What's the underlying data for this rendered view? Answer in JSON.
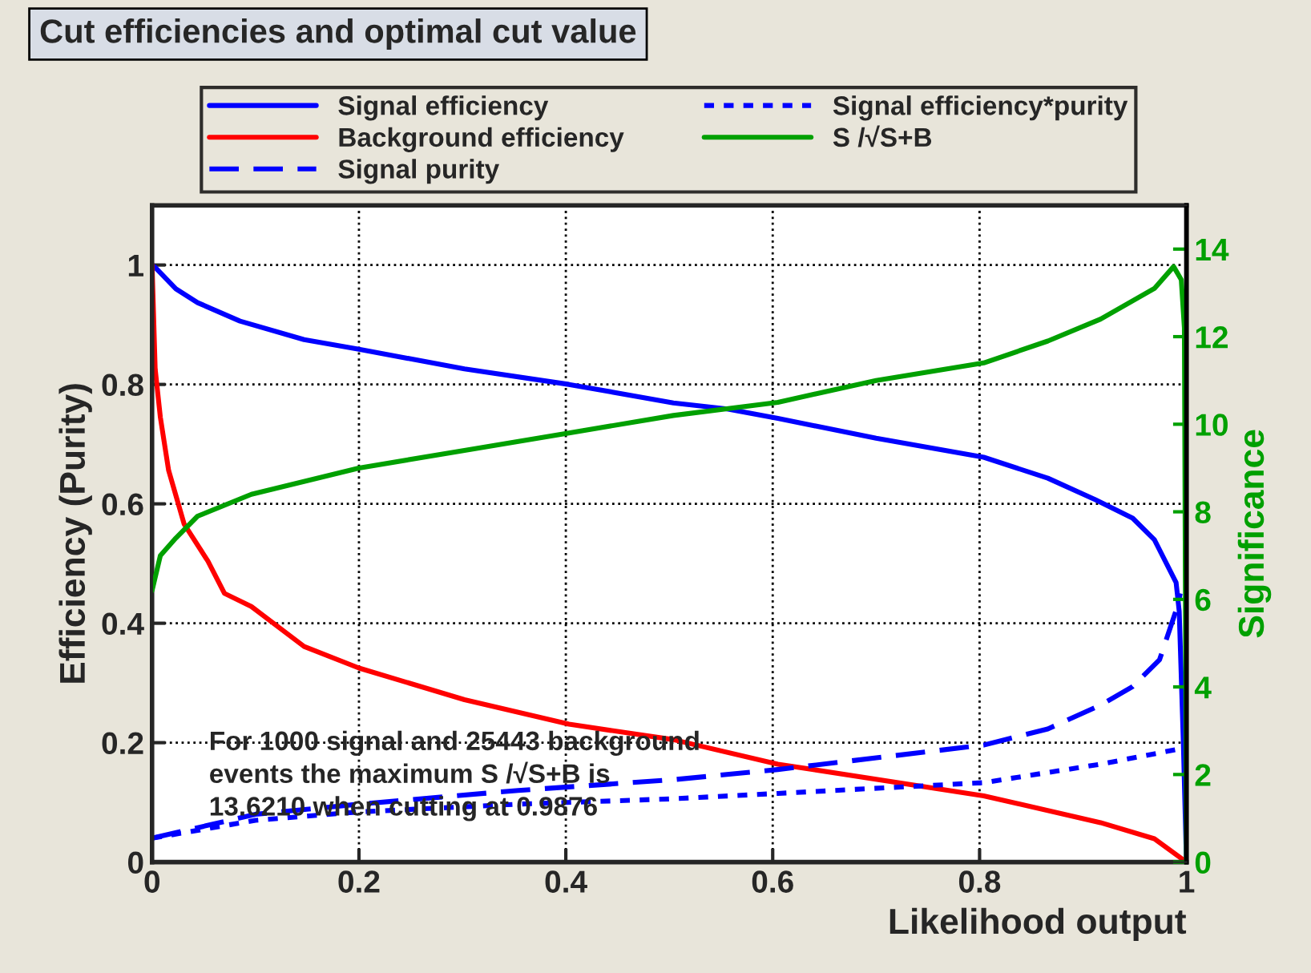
{
  "chart_data": {
    "type": "line",
    "title": "Cut efficiencies and optimal cut value",
    "xlabel": "Likelihood output",
    "ylabel": "Efficiency (Purity)",
    "y2label": "Significance",
    "xlim": [
      0,
      1
    ],
    "ylim": [
      0,
      1.1
    ],
    "y2lim": [
      0,
      15
    ],
    "xticks": [
      0,
      0.2,
      0.4,
      0.6,
      0.8,
      1
    ],
    "yticks": [
      0,
      0.2,
      0.4,
      0.6,
      0.8,
      1
    ],
    "y2ticks": [
      0,
      2,
      4,
      6,
      8,
      10,
      12,
      14
    ],
    "grid": true,
    "legend": "top",
    "marker": "none",
    "annotations": [
      "For 1000 signal and 25443 background\nevents the maximum S /√S+B is\n13.6210 when cutting at 0.9876"
    ],
    "series": [
      {
        "name": "Signal efficiency",
        "color": "#0000ff",
        "line_style": "solid",
        "x": [
          0,
          0.003,
          0.023,
          0.044,
          0.085,
          0.147,
          0.2,
          0.302,
          0.403,
          0.504,
          0.556,
          0.605,
          0.7,
          0.804,
          0.866,
          0.912,
          0.948,
          0.969,
          0.99,
          0.993,
          0.997,
          1.0
        ],
        "values": [
          1.0,
          0.996,
          0.96,
          0.937,
          0.906,
          0.875,
          0.859,
          0.826,
          0.8,
          0.769,
          0.759,
          0.743,
          0.71,
          0.678,
          0.643,
          0.607,
          0.576,
          0.54,
          0.468,
          0.42,
          0.2,
          0.0
        ]
      },
      {
        "name": "Background efficiency",
        "color": "#ff0000",
        "line_style": "solid",
        "x": [
          0,
          0.003,
          0.008,
          0.016,
          0.031,
          0.054,
          0.07,
          0.096,
          0.147,
          0.2,
          0.302,
          0.403,
          0.504,
          0.605,
          0.804,
          0.917,
          0.969,
          1.0
        ],
        "values": [
          1.0,
          0.826,
          0.745,
          0.656,
          0.566,
          0.504,
          0.45,
          0.428,
          0.361,
          0.325,
          0.272,
          0.231,
          0.205,
          0.164,
          0.111,
          0.066,
          0.039,
          0.0
        ]
      },
      {
        "name": "Signal purity",
        "color": "#0000ff",
        "line_style": "dashed",
        "x": [
          0,
          0.1,
          0.2,
          0.354,
          0.504,
          0.605,
          0.804,
          0.866,
          0.917,
          0.948,
          0.974,
          0.992,
          0.994
        ],
        "values": [
          0.04,
          0.08,
          0.097,
          0.12,
          0.138,
          0.155,
          0.196,
          0.223,
          0.263,
          0.294,
          0.339,
          0.432,
          0.45
        ]
      },
      {
        "name": "Signal efficiency*purity",
        "color": "#0000ff",
        "line_style": "dotted",
        "x": [
          0,
          0.1,
          0.2,
          0.354,
          0.504,
          0.605,
          0.804,
          0.917,
          0.995
        ],
        "values": [
          0.04,
          0.07,
          0.084,
          0.097,
          0.106,
          0.115,
          0.133,
          0.164,
          0.19
        ]
      },
      {
        "name": "S /√S+B",
        "color": "#00a000",
        "line_style": "solid",
        "axis": "y2",
        "x": [
          0,
          0.008,
          0.023,
          0.044,
          0.096,
          0.2,
          0.302,
          0.403,
          0.504,
          0.605,
          0.7,
          0.804,
          0.866,
          0.917,
          0.969,
          0.9876,
          0.995,
          0.998,
          1.0
        ],
        "values": [
          6.2,
          7.0,
          7.4,
          7.9,
          8.4,
          9.0,
          9.4,
          9.8,
          10.2,
          10.5,
          11.0,
          11.4,
          11.9,
          12.4,
          13.1,
          13.6,
          13.3,
          12.2,
          0.0
        ]
      }
    ]
  }
}
